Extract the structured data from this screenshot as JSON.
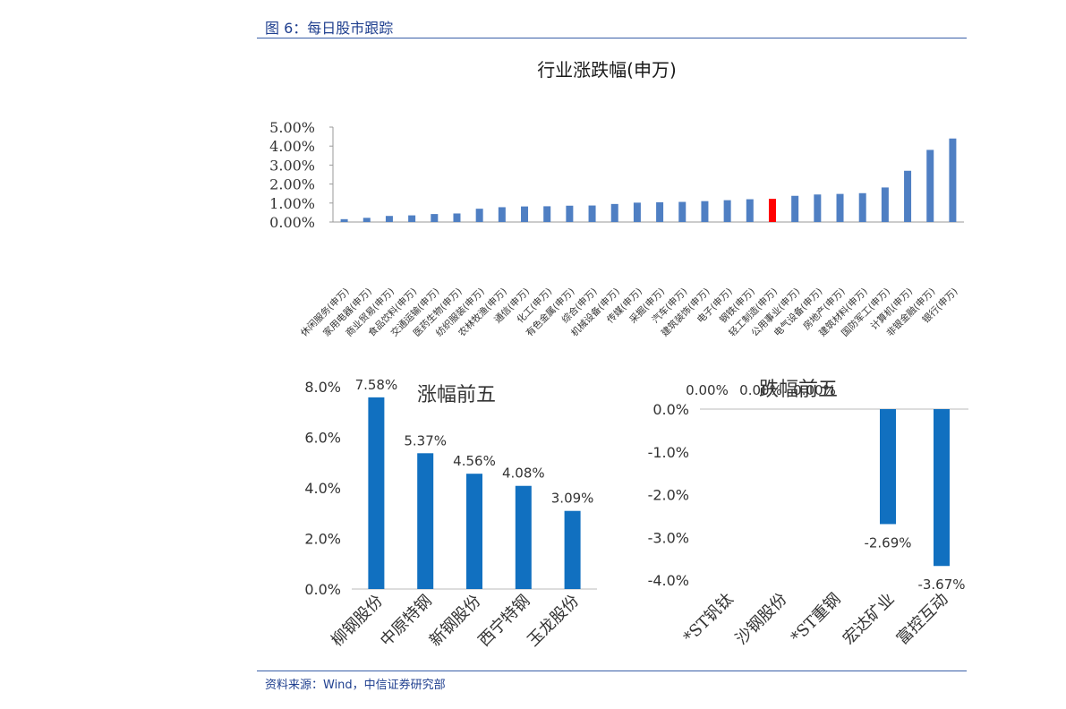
{
  "header": {
    "figure_title": "图 6：每日股市跟踪"
  },
  "footer": {
    "source": "资料来源：Wind，中信证券研究部"
  },
  "colors": {
    "bar": "#4f7fc3",
    "highlight": "#ff0000",
    "small_bar": "#1170c0",
    "rule": "#3a5fa8"
  },
  "chart_data": [
    {
      "type": "bar",
      "title": "行业涨跌幅(申万)",
      "categories": [
        "休闲服务(申万)",
        "家用电器(申万)",
        "商业贸易(申万)",
        "食品饮料(申万)",
        "交通运输(申万)",
        "医药生物(申万)",
        "纺织服装(申万)",
        "农林牧渔(申万)",
        "通信(申万)",
        "化工(申万)",
        "有色金属(申万)",
        "综合(申万)",
        "机械设备(申万)",
        "传媒(申万)",
        "采掘(申万)",
        "汽车(申万)",
        "建筑装饰(申万)",
        "电子(申万)",
        "钢铁(申万)",
        "轻工制造(申万)",
        "公用事业(申万)",
        "电气设备(申万)",
        "房地产(申万)",
        "建筑材料(申万)",
        "国防军工(申万)",
        "计算机(申万)",
        "非银金融(申万)",
        "银行(申万)"
      ],
      "values": [
        0.15,
        0.22,
        0.32,
        0.35,
        0.42,
        0.45,
        0.7,
        0.78,
        0.82,
        0.83,
        0.86,
        0.87,
        0.95,
        1.02,
        1.04,
        1.06,
        1.1,
        1.15,
        1.2,
        1.22,
        1.38,
        1.45,
        1.48,
        1.52,
        1.82,
        2.7,
        3.8,
        4.4
      ],
      "highlight_index": 19,
      "yticks": [
        "5.00%",
        "4.00%",
        "3.00%",
        "2.00%",
        "1.00%",
        "0.00%"
      ],
      "ylim": [
        0,
        5
      ],
      "grid": false
    },
    {
      "type": "bar",
      "title": "涨幅前五",
      "categories": [
        "柳钢股份",
        "中原特钢",
        "新钢股份",
        "西宁特钢",
        "玉龙股份"
      ],
      "values": [
        7.58,
        5.37,
        4.56,
        4.08,
        3.09
      ],
      "data_labels": [
        "7.58%",
        "5.37%",
        "4.56%",
        "4.08%",
        "3.09%"
      ],
      "yticks": [
        "8.0%",
        "6.0%",
        "4.0%",
        "2.0%",
        "0.0%"
      ],
      "ylim": [
        0,
        8
      ],
      "grid": false
    },
    {
      "type": "bar",
      "title": "跌幅前五",
      "categories": [
        "*ST钒钛",
        "沙钢股份",
        "*ST重钢",
        "宏达矿业",
        "富控互动"
      ],
      "values": [
        0,
        0,
        0,
        -2.69,
        -3.67
      ],
      "data_labels": [
        "0.00%",
        "0.00%",
        "0.00%",
        "-2.69%",
        "-3.67%"
      ],
      "yticks": [
        "0.0%",
        "-1.0%",
        "-2.0%",
        "-3.0%",
        "-4.0%"
      ],
      "ylim": [
        -4,
        0
      ],
      "grid": false
    }
  ]
}
